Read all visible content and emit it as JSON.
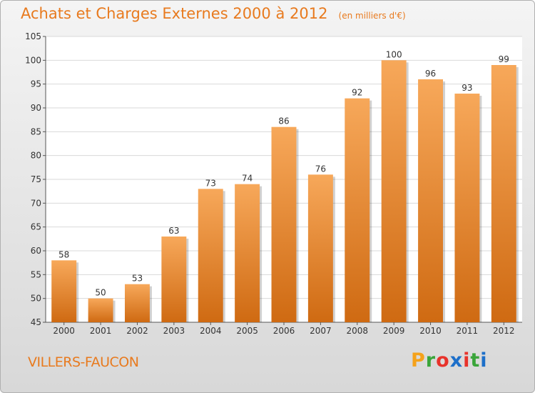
{
  "page": {
    "city": "VILLERS-FAUCON",
    "brand": [
      "P",
      "r",
      "o",
      "x",
      "i",
      "t",
      "i"
    ],
    "brand_colors": [
      "#f5a21a",
      "#3aa53a",
      "#e8332b",
      "#1d6fc9",
      "#e8332b",
      "#3aa53a",
      "#1d6fc9"
    ]
  },
  "chart_data": {
    "type": "bar",
    "title": "Achats et Charges Externes 2000 à 2012",
    "unit": "(en milliers d'€)",
    "categories": [
      "2000",
      "2001",
      "2002",
      "2003",
      "2004",
      "2005",
      "2006",
      "2007",
      "2008",
      "2009",
      "2010",
      "2011",
      "2012"
    ],
    "values": [
      58,
      50,
      53,
      63,
      73,
      74,
      86,
      76,
      92,
      100,
      96,
      93,
      99
    ],
    "ylim": [
      45,
      105
    ],
    "yticks": [
      45,
      50,
      55,
      60,
      65,
      70,
      75,
      80,
      85,
      90,
      95,
      100,
      105
    ],
    "grid": true,
    "bar_color_top": "#f7a85a",
    "bar_color_bottom": "#cf6a12",
    "title_color": "#e87a1e"
  }
}
